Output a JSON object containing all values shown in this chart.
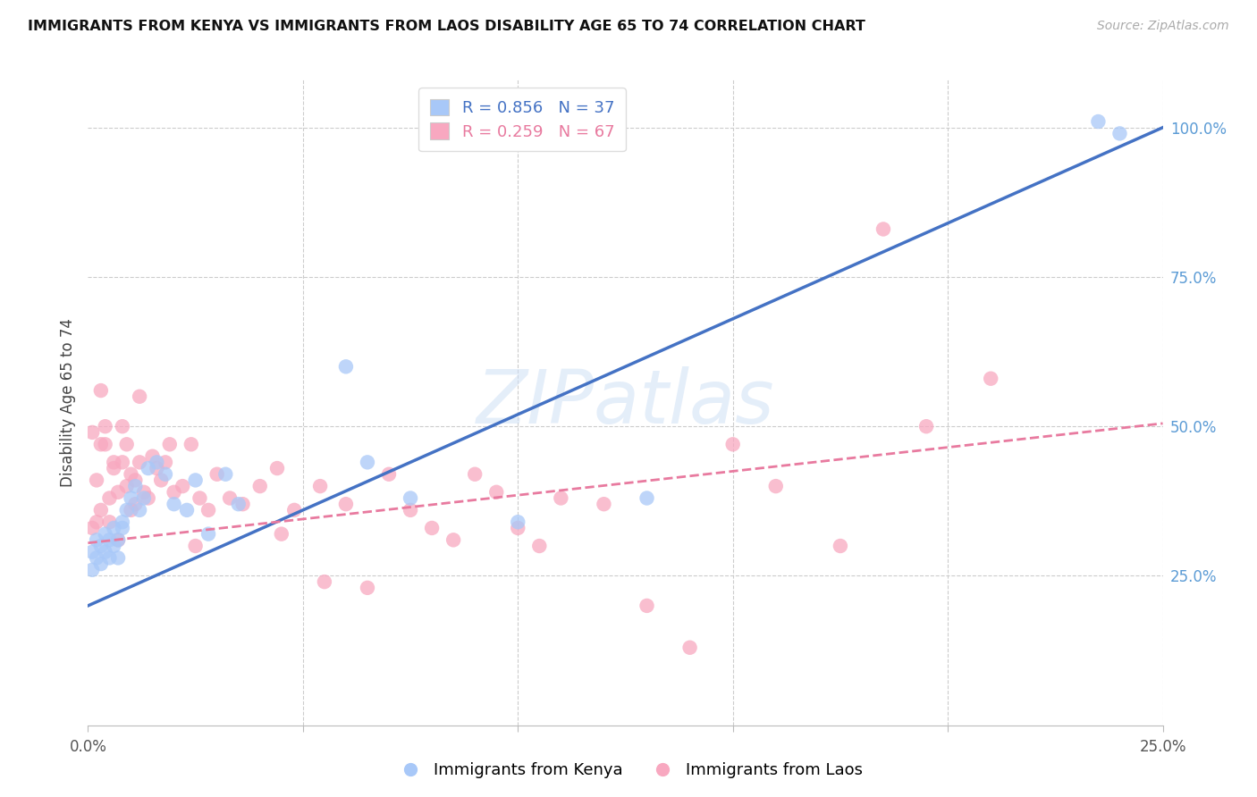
{
  "title": "IMMIGRANTS FROM KENYA VS IMMIGRANTS FROM LAOS DISABILITY AGE 65 TO 74 CORRELATION CHART",
  "source": "Source: ZipAtlas.com",
  "ylabel": "Disability Age 65 to 74",
  "xlim": [
    0.0,
    0.25
  ],
  "ylim": [
    0.0,
    1.08
  ],
  "kenya_R": 0.856,
  "kenya_N": 37,
  "laos_R": 0.259,
  "laos_N": 67,
  "kenya_color": "#a8c8f8",
  "laos_color": "#f8a8c0",
  "kenya_line_color": "#4472c4",
  "laos_line_color": "#e87a9f",
  "right_axis_color": "#5b9bd5",
  "watermark": "ZIPatlas",
  "kenya_line_x0": 0.0,
  "kenya_line_y0": 0.2,
  "kenya_line_x1": 0.25,
  "kenya_line_y1": 1.0,
  "laos_line_x0": 0.0,
  "laos_line_y0": 0.305,
  "laos_line_x1": 0.25,
  "laos_line_y1": 0.505,
  "kenya_points_x": [
    0.001,
    0.001,
    0.002,
    0.002,
    0.003,
    0.003,
    0.004,
    0.004,
    0.005,
    0.005,
    0.006,
    0.006,
    0.007,
    0.007,
    0.008,
    0.008,
    0.009,
    0.01,
    0.011,
    0.012,
    0.013,
    0.014,
    0.016,
    0.018,
    0.02,
    0.023,
    0.025,
    0.028,
    0.032,
    0.035,
    0.06,
    0.065,
    0.075,
    0.1,
    0.13,
    0.235,
    0.24
  ],
  "kenya_points_y": [
    0.29,
    0.26,
    0.28,
    0.31,
    0.27,
    0.3,
    0.29,
    0.32,
    0.28,
    0.31,
    0.3,
    0.33,
    0.31,
    0.28,
    0.34,
    0.33,
    0.36,
    0.38,
    0.4,
    0.36,
    0.38,
    0.43,
    0.44,
    0.42,
    0.37,
    0.36,
    0.41,
    0.32,
    0.42,
    0.37,
    0.6,
    0.44,
    0.38,
    0.34,
    0.38,
    1.01,
    0.99
  ],
  "laos_points_x": [
    0.001,
    0.001,
    0.002,
    0.002,
    0.003,
    0.003,
    0.003,
    0.004,
    0.004,
    0.005,
    0.005,
    0.006,
    0.006,
    0.007,
    0.007,
    0.008,
    0.008,
    0.009,
    0.009,
    0.01,
    0.01,
    0.011,
    0.011,
    0.012,
    0.012,
    0.013,
    0.014,
    0.015,
    0.016,
    0.017,
    0.018,
    0.019,
    0.02,
    0.022,
    0.024,
    0.026,
    0.028,
    0.03,
    0.033,
    0.036,
    0.04,
    0.044,
    0.048,
    0.054,
    0.06,
    0.065,
    0.07,
    0.075,
    0.08,
    0.085,
    0.09,
    0.095,
    0.1,
    0.11,
    0.12,
    0.13,
    0.14,
    0.15,
    0.16,
    0.175,
    0.185,
    0.195,
    0.21,
    0.105,
    0.055,
    0.045,
    0.025
  ],
  "laos_points_y": [
    0.33,
    0.49,
    0.34,
    0.41,
    0.47,
    0.36,
    0.56,
    0.47,
    0.5,
    0.34,
    0.38,
    0.44,
    0.43,
    0.39,
    0.31,
    0.5,
    0.44,
    0.4,
    0.47,
    0.36,
    0.42,
    0.37,
    0.41,
    0.44,
    0.55,
    0.39,
    0.38,
    0.45,
    0.43,
    0.41,
    0.44,
    0.47,
    0.39,
    0.4,
    0.47,
    0.38,
    0.36,
    0.42,
    0.38,
    0.37,
    0.4,
    0.43,
    0.36,
    0.4,
    0.37,
    0.23,
    0.42,
    0.36,
    0.33,
    0.31,
    0.42,
    0.39,
    0.33,
    0.38,
    0.37,
    0.2,
    0.13,
    0.47,
    0.4,
    0.3,
    0.83,
    0.5,
    0.58,
    0.3,
    0.24,
    0.32,
    0.3
  ]
}
